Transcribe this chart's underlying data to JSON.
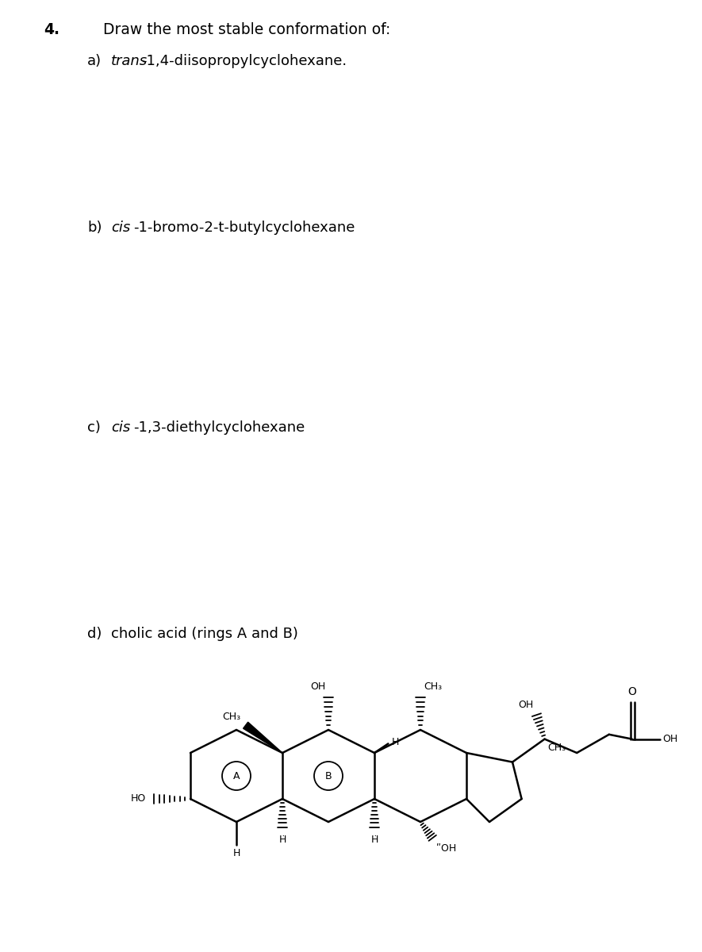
{
  "title_number": "4.",
  "title_text": "Draw the most stable conformation of:",
  "item_a_label": "a)",
  "item_a_italic": "trans",
  "item_a_text": "-1,4-diisopropylcyclohexane.",
  "item_b_label": "b)",
  "item_b_italic": "cis",
  "item_b_text": "-1-bromo-2-t-butylcyclohexane",
  "item_c_label": "c)",
  "item_c_italic": "cis",
  "item_c_text": "-1,3-diethylcyclohexane",
  "item_d_label": "d)",
  "item_d_text": "cholic acid (rings A and B)",
  "bg_color": "#ffffff",
  "text_color": "#000000",
  "font_size_title": 13.5,
  "font_size_items": 13
}
